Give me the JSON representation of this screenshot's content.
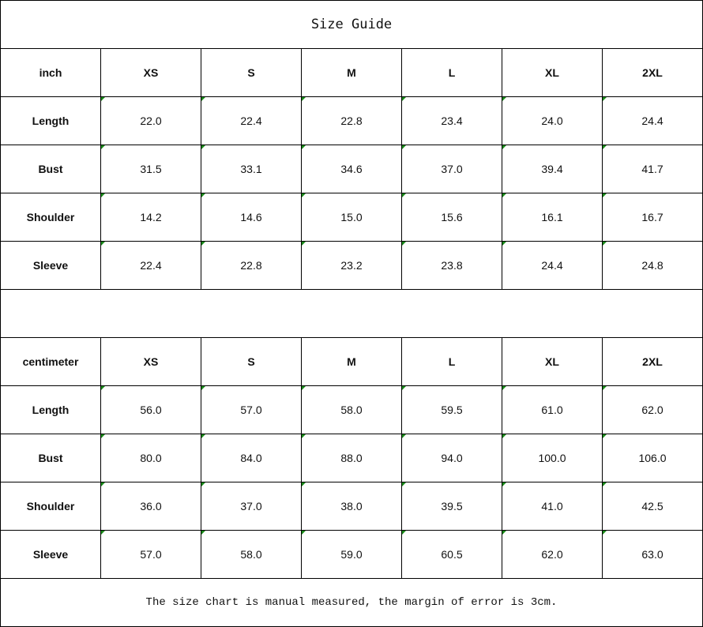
{
  "title": "Size Guide",
  "sizes": [
    "XS",
    "S",
    "M",
    "L",
    "XL",
    "2XL"
  ],
  "tables": [
    {
      "unit": "inch",
      "rows": [
        {
          "label": "Length",
          "values": [
            "22.0",
            "22.4",
            "22.8",
            "23.4",
            "24.0",
            "24.4"
          ]
        },
        {
          "label": "Bust",
          "values": [
            "31.5",
            "33.1",
            "34.6",
            "37.0",
            "39.4",
            "41.7"
          ]
        },
        {
          "label": "Shoulder",
          "values": [
            "14.2",
            "14.6",
            "15.0",
            "15.6",
            "16.1",
            "16.7"
          ]
        },
        {
          "label": "Sleeve",
          "values": [
            "22.4",
            "22.8",
            "23.2",
            "23.8",
            "24.4",
            "24.8"
          ]
        }
      ]
    },
    {
      "unit": "centimeter",
      "rows": [
        {
          "label": "Length",
          "values": [
            "56.0",
            "57.0",
            "58.0",
            "59.5",
            "61.0",
            "62.0"
          ]
        },
        {
          "label": "Bust",
          "values": [
            "80.0",
            "84.0",
            "88.0",
            "94.0",
            "100.0",
            "106.0"
          ]
        },
        {
          "label": "Shoulder",
          "values": [
            "36.0",
            "37.0",
            "38.0",
            "39.5",
            "41.0",
            "42.5"
          ]
        },
        {
          "label": "Sleeve",
          "values": [
            "57.0",
            "58.0",
            "59.0",
            "60.5",
            "62.0",
            "63.0"
          ]
        }
      ]
    }
  ],
  "note": "The size chart is manual measured, the margin of error is 3cm.",
  "marker_color": "#1a8a1a"
}
